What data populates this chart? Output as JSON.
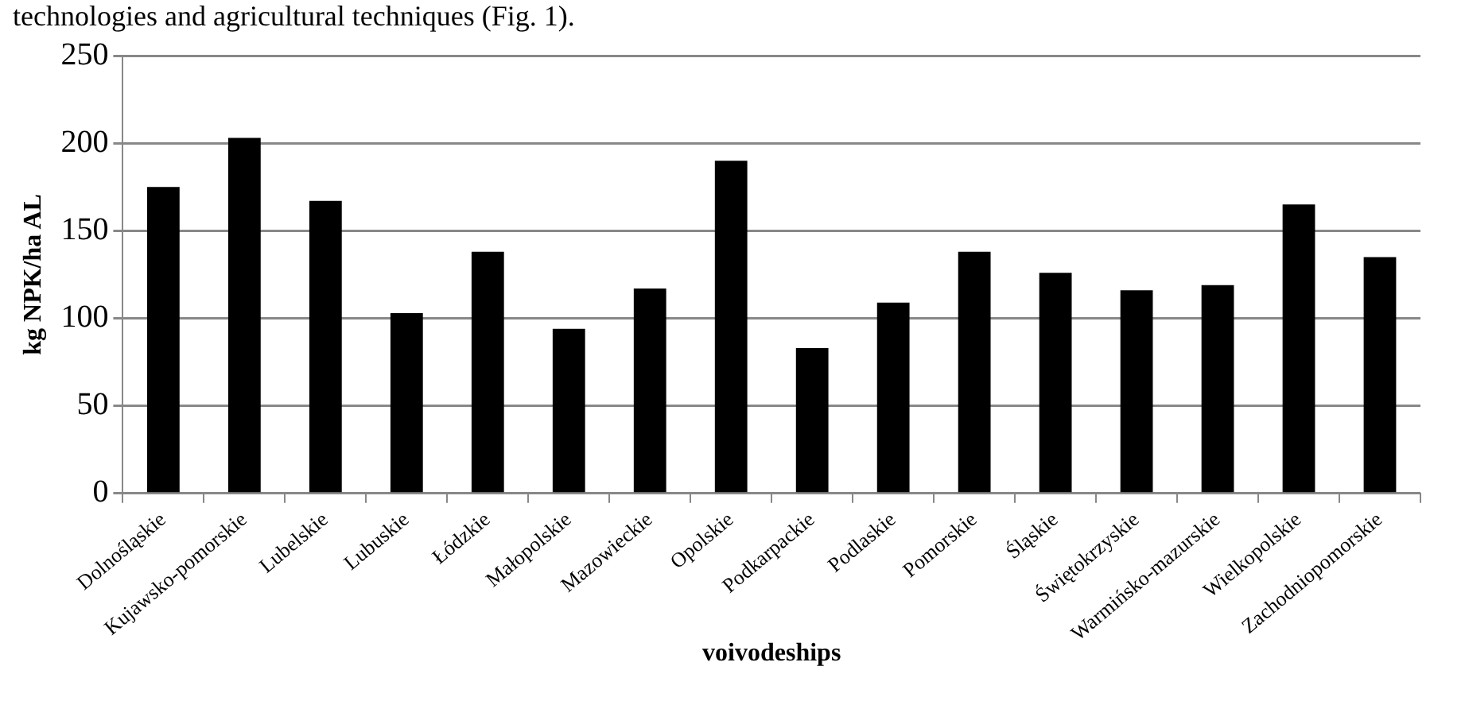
{
  "chart_data": {
    "type": "bar",
    "ylabel": "kg NPK/ha AL",
    "xlabel": "voivodeships",
    "annotations": [
      "technologies and agricultural techniques (Fig. 1)."
    ],
    "categories": [
      "Dolnośląskie",
      "Kujawsko-pomorskie",
      "Lubelskie",
      "Lubuskie",
      "Łódzkie",
      "Małopolskie",
      "Mazowieckie",
      "Opolskie",
      "Podkarpackie",
      "Podlaskie",
      "Pomorskie",
      "Śląskie",
      "Świętokrzyskie",
      "Warmińsko-mazurskie",
      "Wielkopolskie",
      "Zachodniopomorskie"
    ],
    "values": [
      175,
      203,
      167,
      103,
      138,
      94,
      117,
      190,
      83,
      109,
      138,
      126,
      116,
      119,
      165,
      135
    ],
    "color": "#000000",
    "ylim": [
      0,
      250
    ],
    "yticks": [
      0,
      50,
      100,
      150,
      200,
      250
    ],
    "grid": "y",
    "legend": false
  }
}
